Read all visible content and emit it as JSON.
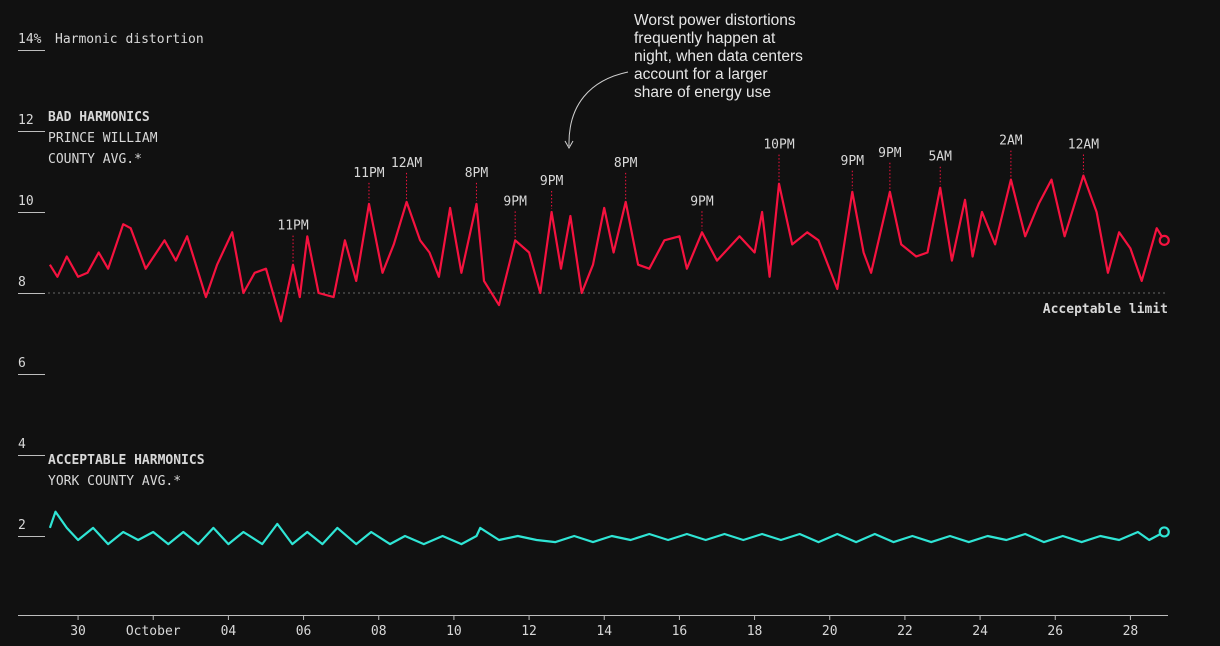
{
  "chart_data": {
    "type": "line",
    "y_label": "Harmonic distortion",
    "note": [
      "Worst power distortions",
      "frequently happen at",
      "night, when data centers",
      "account for a larger",
      "share of energy use"
    ],
    "xlim": [
      -0.8,
      29
    ],
    "xticks": [
      {
        "value": 0,
        "label": "30"
      },
      {
        "value": 2,
        "label": "October"
      },
      {
        "value": 4,
        "label": "04"
      },
      {
        "value": 6,
        "label": "06"
      },
      {
        "value": 8,
        "label": "08"
      },
      {
        "value": 10,
        "label": "10"
      },
      {
        "value": 12,
        "label": "12"
      },
      {
        "value": 14,
        "label": "14"
      },
      {
        "value": 16,
        "label": "16"
      },
      {
        "value": 18,
        "label": "18"
      },
      {
        "value": 20,
        "label": "20"
      },
      {
        "value": 22,
        "label": "22"
      },
      {
        "value": 24,
        "label": "24"
      },
      {
        "value": 26,
        "label": "26"
      },
      {
        "value": 28,
        "label": "28"
      }
    ],
    "ylim": [
      0,
      14
    ],
    "yticks": [
      2,
      4,
      6,
      8,
      10,
      12,
      {
        "value": 14,
        "label": "14%"
      }
    ],
    "reference_line": {
      "value": 8,
      "label": "Acceptable limit"
    },
    "series": [
      {
        "name": "BAD HARMONICS",
        "description": [
          "PRINCE WILLIAM",
          "COUNTY AVG.*"
        ],
        "color": "#f5123f",
        "x": [
          -0.75,
          -0.55,
          -0.3,
          0.0,
          0.25,
          0.55,
          0.8,
          1.2,
          1.4,
          1.8,
          2.3,
          2.6,
          2.9,
          3.4,
          3.7,
          4.1,
          4.4,
          4.7,
          5.0,
          5.4,
          5.72,
          5.9,
          6.1,
          6.4,
          6.8,
          7.1,
          7.4,
          7.74,
          8.1,
          8.4,
          8.74,
          9.1,
          9.35,
          9.6,
          9.9,
          10.2,
          10.6,
          10.8,
          11.2,
          11.63,
          12.0,
          12.3,
          12.6,
          12.85,
          13.1,
          13.4,
          13.7,
          14.0,
          14.25,
          14.57,
          14.9,
          15.2,
          15.6,
          16.0,
          16.2,
          16.6,
          17.0,
          17.6,
          18.0,
          18.2,
          18.4,
          18.65,
          19.0,
          19.4,
          19.7,
          20.2,
          20.6,
          20.9,
          21.1,
          21.6,
          21.9,
          22.3,
          22.6,
          22.94,
          23.25,
          23.6,
          23.8,
          24.05,
          24.4,
          24.82,
          25.2,
          25.56,
          25.9,
          26.25,
          26.75,
          27.1,
          27.4,
          27.7,
          28.0,
          28.3,
          28.7,
          28.9
        ],
        "values": [
          8.7,
          8.4,
          8.9,
          8.4,
          8.5,
          9.0,
          8.6,
          9.7,
          9.6,
          8.6,
          9.3,
          8.8,
          9.4,
          7.9,
          8.7,
          9.5,
          8.0,
          8.5,
          8.6,
          7.3,
          8.7,
          7.9,
          9.4,
          8.0,
          7.9,
          9.3,
          8.3,
          10.2,
          8.5,
          9.2,
          10.25,
          9.3,
          9.0,
          8.4,
          10.1,
          8.5,
          10.2,
          8.3,
          7.7,
          9.3,
          9.0,
          8.0,
          10.0,
          8.6,
          9.9,
          8.0,
          8.7,
          10.1,
          9.0,
          10.25,
          8.7,
          8.6,
          9.3,
          9.4,
          8.6,
          9.5,
          8.8,
          9.4,
          9.0,
          10.0,
          8.4,
          10.7,
          9.2,
          9.5,
          9.3,
          8.1,
          10.5,
          9.0,
          8.5,
          10.5,
          9.2,
          8.9,
          9.0,
          10.6,
          8.8,
          10.3,
          8.9,
          10.0,
          9.2,
          10.8,
          9.4,
          10.2,
          10.8,
          9.4,
          10.9,
          10.0,
          8.5,
          9.5,
          9.1,
          8.3,
          9.6,
          9.3
        ]
      },
      {
        "name": "ACCEPTABLE HARMONICS",
        "description": [
          "YORK COUNTY AVG.*"
        ],
        "color": "#2fe5d5",
        "x": [
          -0.75,
          -0.6,
          -0.3,
          0.0,
          0.4,
          0.8,
          1.2,
          1.6,
          2.0,
          2.4,
          2.8,
          3.2,
          3.6,
          4.0,
          4.4,
          4.9,
          5.3,
          5.7,
          6.1,
          6.5,
          6.9,
          7.4,
          7.8,
          8.3,
          8.7,
          9.2,
          9.7,
          10.2,
          10.6,
          10.7,
          11.2,
          11.7,
          12.2,
          12.7,
          13.2,
          13.7,
          14.2,
          14.7,
          15.2,
          15.7,
          16.2,
          16.7,
          17.2,
          17.7,
          18.2,
          18.7,
          19.2,
          19.7,
          20.2,
          20.7,
          21.2,
          21.7,
          22.2,
          22.7,
          23.2,
          23.7,
          24.2,
          24.7,
          25.2,
          25.7,
          26.2,
          26.7,
          27.2,
          27.7,
          28.2,
          28.5,
          28.9
        ],
        "values": [
          2.2,
          2.6,
          2.2,
          1.9,
          2.2,
          1.8,
          2.1,
          1.9,
          2.1,
          1.8,
          2.1,
          1.8,
          2.2,
          1.8,
          2.1,
          1.8,
          2.3,
          1.8,
          2.1,
          1.8,
          2.2,
          1.8,
          2.1,
          1.8,
          2.0,
          1.8,
          2.0,
          1.8,
          2.0,
          2.2,
          1.9,
          2.0,
          1.9,
          1.85,
          2.0,
          1.85,
          2.0,
          1.9,
          2.05,
          1.9,
          2.05,
          1.9,
          2.05,
          1.9,
          2.05,
          1.9,
          2.05,
          1.85,
          2.05,
          1.85,
          2.05,
          1.85,
          2.0,
          1.85,
          2.0,
          1.85,
          2.0,
          1.9,
          2.05,
          1.85,
          2.0,
          1.85,
          2.0,
          1.9,
          2.1,
          1.9,
          2.1
        ]
      }
    ],
    "annotations": [
      {
        "label": "11PM",
        "x": 5.72,
        "y": 8.7
      },
      {
        "label": "11PM",
        "x": 7.74,
        "y": 10.2
      },
      {
        "label": "12AM",
        "x": 8.74,
        "y": 10.25
      },
      {
        "label": "8PM",
        "x": 10.6,
        "y": 10.2
      },
      {
        "label": "9PM",
        "x": 11.63,
        "y": 9.3
      },
      {
        "label": "9PM",
        "x": 12.6,
        "y": 10.0
      },
      {
        "label": "8PM",
        "x": 14.57,
        "y": 10.25
      },
      {
        "label": "9PM",
        "x": 16.6,
        "y": 9.5
      },
      {
        "label": "10PM",
        "x": 18.65,
        "y": 10.7
      },
      {
        "label": "9PM",
        "x": 20.6,
        "y": 10.5
      },
      {
        "label": "9PM",
        "x": 21.6,
        "y": 10.5
      },
      {
        "label": "5AM",
        "x": 22.94,
        "y": 10.6
      },
      {
        "label": "2AM",
        "x": 24.82,
        "y": 10.8
      },
      {
        "label": "12AM",
        "x": 26.75,
        "y": 10.9
      }
    ]
  }
}
